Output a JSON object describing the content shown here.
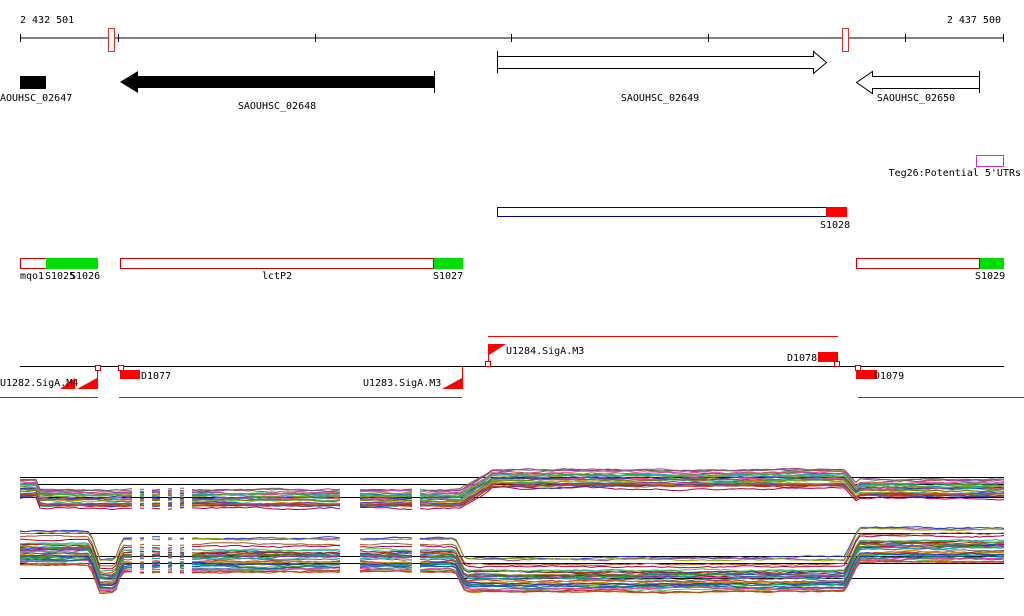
{
  "coords": {
    "start_label": "2 432 501",
    "end_label": "2 437 500"
  },
  "genes": [
    {
      "label": "AOUHSC_02647",
      "strand": "-"
    },
    {
      "label": "SAOUHSC_02648",
      "strand": "-"
    },
    {
      "label": "SAOUHSC_02649",
      "strand": "+"
    },
    {
      "label": "SAOUHSC_02650",
      "strand": "-"
    }
  ],
  "utr_track": {
    "label": "Teg26:Potential 5'UTRs",
    "color": "#cc33cc"
  },
  "segments": {
    "s1028": "S1028",
    "mqo1": "mqo1",
    "s1025": "S1025",
    "s1026": "S1026",
    "lctp2": "lctP2",
    "s1027": "S1027",
    "s1029": "S1029"
  },
  "promoters": {
    "u1282": "U1282.SigA.M4",
    "u1283": "U1283.SigA.M3",
    "u1284": "U1284.SigA.M3",
    "d1077": "D1077",
    "d1078": "D1078",
    "d1079": "D1079"
  },
  "colors": {
    "feature_fill": "#ff0000",
    "segment_outline": "#cc0000",
    "s_segment_fill": "#00dd00",
    "gene_fill": "#000000",
    "transcript_outline": "#000080"
  }
}
